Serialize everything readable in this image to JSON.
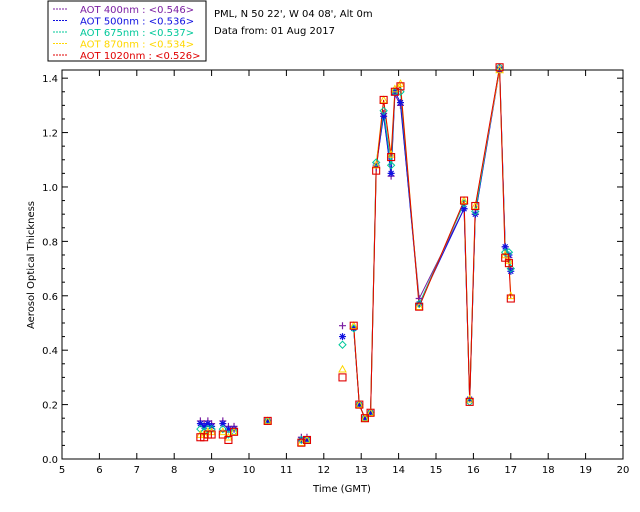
{
  "site_info": {
    "location": "PML, N 50 22', W 04 08', Alt 0m",
    "date_line": "Data from: 01 Aug 2017"
  },
  "chart_data": {
    "type": "line",
    "title": "",
    "xlabel": "Time (GMT)",
    "ylabel": "Aerosol Optical Thickness",
    "xlim": [
      5,
      20
    ],
    "ylim": [
      0.0,
      1.43
    ],
    "x_ticks": [
      5,
      6,
      7,
      8,
      9,
      10,
      11,
      12,
      13,
      14,
      15,
      16,
      17,
      18,
      19,
      20
    ],
    "y_ticks": [
      0.0,
      0.2,
      0.4,
      0.6,
      0.8,
      1.0,
      1.2,
      1.4
    ],
    "y_tick_labels": [
      "0.0",
      "0.2",
      "0.4",
      "0.6",
      "0.8",
      "1.0",
      "1.2",
      "1.4"
    ],
    "grid": false,
    "legend_position": "top-left, outside plot",
    "series": [
      {
        "name": "AOT  400nm : <0.546>",
        "color": "#7b1fa2",
        "marker": "plus",
        "x": [
          8.7,
          8.8,
          8.9,
          9.0,
          9.3,
          9.45,
          9.6,
          10.5,
          11.4,
          11.55,
          12.5,
          12.8,
          12.95,
          13.1,
          13.25,
          13.4,
          13.6,
          13.8,
          13.9,
          14.05,
          14.55,
          15.75,
          15.9,
          16.05,
          16.7,
          16.85,
          16.95,
          17.0
        ],
        "y": [
          0.14,
          0.13,
          0.14,
          0.13,
          0.14,
          0.12,
          0.12,
          0.14,
          0.08,
          0.08,
          0.49,
          0.48,
          0.2,
          0.15,
          0.17,
          1.07,
          1.27,
          1.04,
          1.34,
          1.3,
          0.59,
          0.92,
          0.22,
          0.9,
          1.44,
          0.78,
          0.74,
          0.7
        ],
        "connected_from_index": 11
      },
      {
        "name": "AOT  500nm : <0.536>",
        "color": "#1010e0",
        "marker": "asterisk",
        "x": [
          8.7,
          8.8,
          8.9,
          9.0,
          9.3,
          9.45,
          9.6,
          10.5,
          11.4,
          11.55,
          12.5,
          12.8,
          12.95,
          13.1,
          13.25,
          13.4,
          13.6,
          13.8,
          13.9,
          14.05,
          14.55,
          15.75,
          15.9,
          16.05,
          16.7,
          16.85,
          16.95,
          17.0
        ],
        "y": [
          0.13,
          0.12,
          0.13,
          0.12,
          0.13,
          0.11,
          0.11,
          0.14,
          0.07,
          0.07,
          0.45,
          0.48,
          0.2,
          0.15,
          0.17,
          1.08,
          1.26,
          1.05,
          1.35,
          1.31,
          0.57,
          0.92,
          0.22,
          0.9,
          1.43,
          0.78,
          0.75,
          0.69
        ],
        "connected_from_index": 11
      },
      {
        "name": "AOT  675nm : <0.537>",
        "color": "#00c89a",
        "marker": "diamond",
        "x": [
          8.7,
          8.8,
          8.9,
          9.0,
          9.3,
          9.45,
          9.6,
          10.5,
          11.4,
          11.55,
          12.5,
          12.8,
          12.95,
          13.1,
          13.25,
          13.4,
          13.6,
          13.8,
          13.9,
          14.05,
          14.55,
          15.75,
          15.9,
          16.05,
          16.7,
          16.85,
          16.95,
          17.0
        ],
        "y": [
          0.11,
          0.1,
          0.11,
          0.11,
          0.11,
          0.09,
          0.1,
          0.14,
          0.07,
          0.07,
          0.42,
          0.48,
          0.2,
          0.15,
          0.17,
          1.09,
          1.28,
          1.08,
          1.35,
          1.35,
          0.57,
          0.94,
          0.21,
          0.91,
          1.44,
          0.76,
          0.76,
          0.7
        ],
        "connected_from_index": 11
      },
      {
        "name": "AOT  870nm : <0.534>",
        "color": "#ffd700",
        "marker": "triangle",
        "x": [
          8.7,
          8.8,
          8.9,
          9.0,
          9.3,
          9.45,
          9.6,
          10.5,
          11.4,
          11.55,
          12.5,
          12.8,
          12.95,
          13.1,
          13.25,
          13.4,
          13.6,
          13.8,
          13.9,
          14.05,
          14.55,
          15.75,
          15.9,
          16.05,
          16.7,
          16.85,
          16.95,
          17.0
        ],
        "y": [
          0.09,
          0.09,
          0.1,
          0.1,
          0.1,
          0.08,
          0.1,
          0.14,
          0.06,
          0.07,
          0.33,
          0.49,
          0.2,
          0.15,
          0.17,
          1.08,
          1.32,
          1.12,
          1.36,
          1.38,
          0.56,
          0.95,
          0.22,
          0.93,
          1.43,
          0.75,
          0.73,
          0.6
        ],
        "connected_from_index": 11
      },
      {
        "name": "AOT 1020nm : <0.526>",
        "color": "#e00000",
        "marker": "square",
        "x": [
          8.7,
          8.8,
          8.9,
          9.0,
          9.3,
          9.45,
          9.6,
          10.5,
          11.4,
          11.55,
          12.5,
          12.8,
          12.95,
          13.1,
          13.25,
          13.4,
          13.6,
          13.8,
          13.9,
          14.05,
          14.55,
          15.75,
          15.9,
          16.05,
          16.7,
          16.85,
          16.95,
          17.0
        ],
        "y": [
          0.08,
          0.08,
          0.09,
          0.09,
          0.09,
          0.07,
          0.1,
          0.14,
          0.06,
          0.07,
          0.3,
          0.49,
          0.2,
          0.15,
          0.17,
          1.06,
          1.32,
          1.11,
          1.35,
          1.37,
          0.56,
          0.95,
          0.21,
          0.93,
          1.44,
          0.74,
          0.72,
          0.59
        ],
        "connected_from_index": 11
      }
    ]
  }
}
